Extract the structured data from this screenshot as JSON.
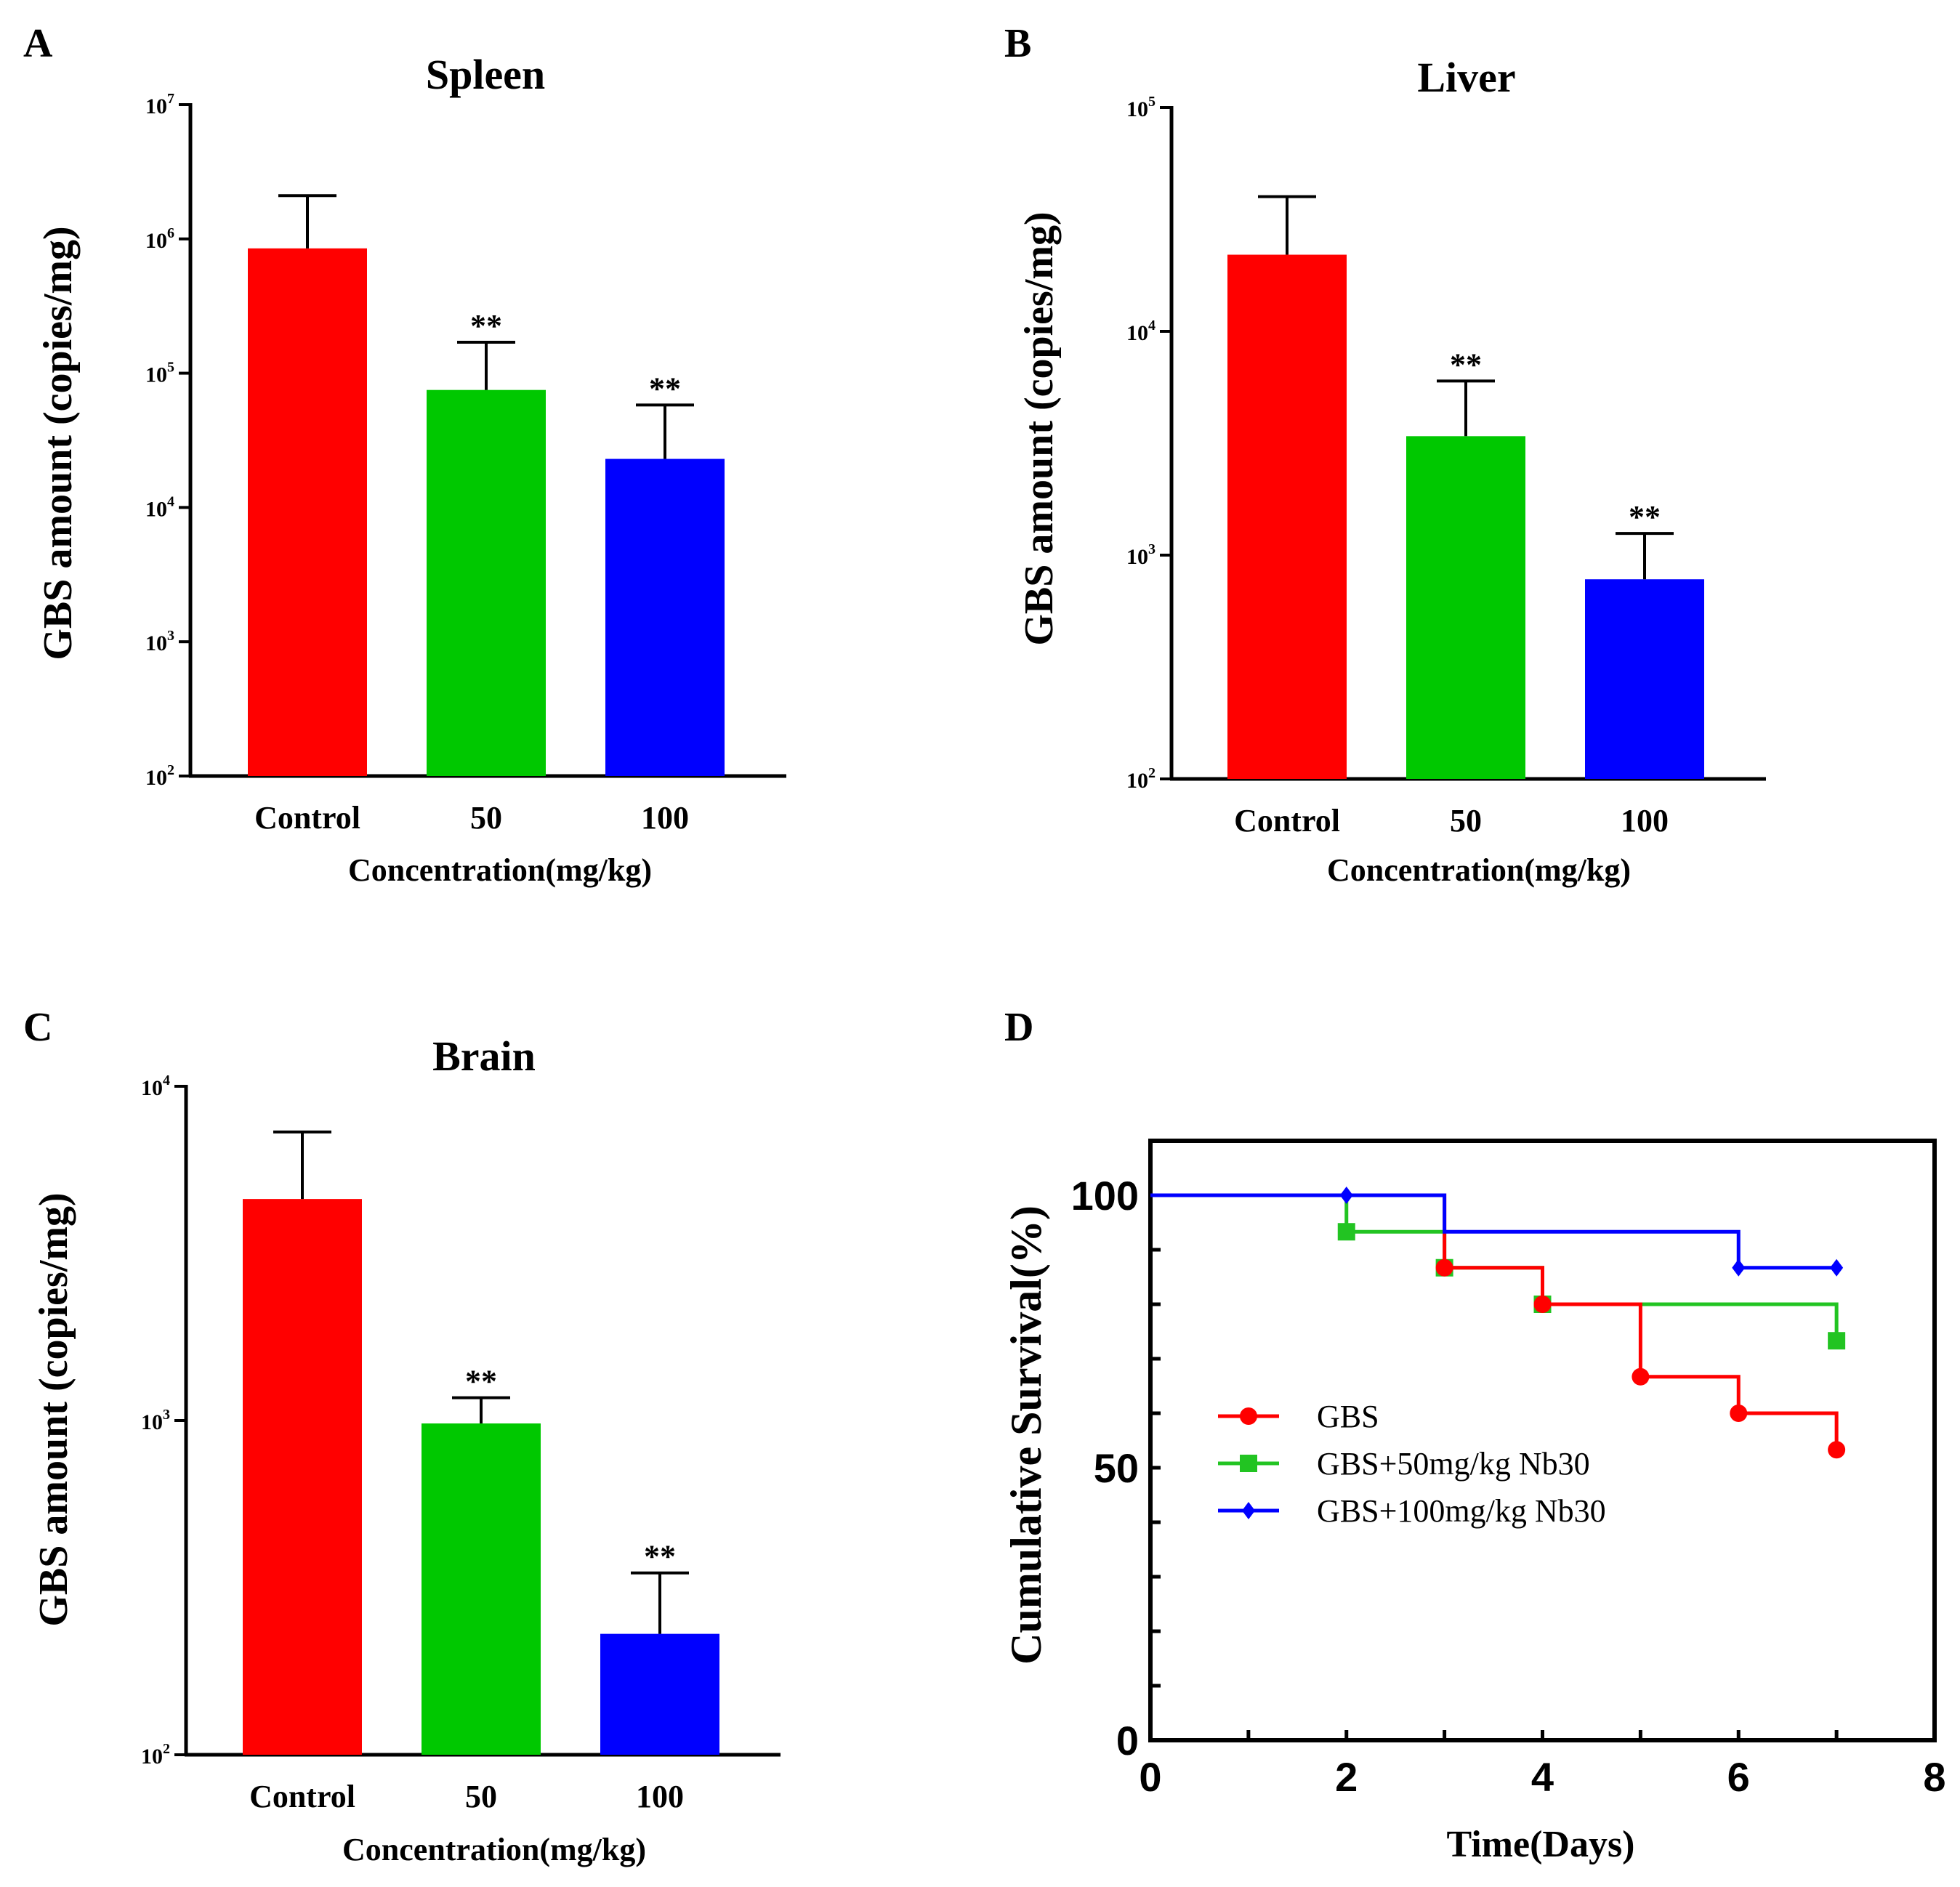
{
  "chart_data": [
    {
      "panel": "A",
      "type": "bar",
      "title": "Spleen",
      "xlabel": "Concentration(mg/kg)",
      "ylabel": "GBS amount (copies/mg)",
      "yscale": "log",
      "ylim": [
        100,
        10000000
      ],
      "y_ticks": [
        {
          "base": "10",
          "exp": "2",
          "value": 100
        },
        {
          "base": "10",
          "exp": "3",
          "value": 1000
        },
        {
          "base": "10",
          "exp": "4",
          "value": 10000
        },
        {
          "base": "10",
          "exp": "5",
          "value": 100000
        },
        {
          "base": "10",
          "exp": "6",
          "value": 1000000
        },
        {
          "base": "10",
          "exp": "7",
          "value": 10000000
        }
      ],
      "categories": [
        "Control",
        "50",
        "100"
      ],
      "values": [
        850000,
        75000,
        23000
      ],
      "error_upper": [
        2100000,
        170000,
        58000
      ],
      "significance": [
        "",
        "**",
        "**"
      ],
      "colors": [
        "#ff0000",
        "#00c800",
        "#0000ff"
      ]
    },
    {
      "panel": "B",
      "type": "bar",
      "title": "Liver",
      "xlabel": "Concentration(mg/kg)",
      "ylabel": "GBS amount  (copies/mg)",
      "yscale": "log",
      "ylim": [
        100,
        100000
      ],
      "y_ticks": [
        {
          "base": "10",
          "exp": "2",
          "value": 100
        },
        {
          "base": "10",
          "exp": "3",
          "value": 1000
        },
        {
          "base": "10",
          "exp": "4",
          "value": 10000
        },
        {
          "base": "10",
          "exp": "5",
          "value": 100000
        }
      ],
      "categories": [
        "Control",
        "50",
        "100"
      ],
      "values": [
        22000,
        3400,
        780
      ],
      "error_upper": [
        40000,
        6000,
        1250
      ],
      "significance": [
        "",
        "**",
        "**"
      ],
      "colors": [
        "#ff0000",
        "#00c800",
        "#0000ff"
      ]
    },
    {
      "panel": "C",
      "type": "bar",
      "title": "Brain",
      "xlabel": "Concentration(mg/kg)",
      "ylabel": "GBS amount (copies/mg)",
      "yscale": "log",
      "ylim": [
        100,
        10000
      ],
      "y_ticks": [
        {
          "base": "10",
          "exp": "2",
          "value": 100
        },
        {
          "base": "10",
          "exp": "3",
          "value": 1000
        },
        {
          "base": "10",
          "exp": "4",
          "value": 10000
        }
      ],
      "categories": [
        "Control",
        "50",
        "100"
      ],
      "values": [
        4600,
        980,
        230
      ],
      "error_upper": [
        7300,
        1170,
        350
      ],
      "significance": [
        "",
        "**",
        "**"
      ],
      "colors": [
        "#ff0000",
        "#00c800",
        "#0000ff"
      ]
    },
    {
      "panel": "D",
      "type": "line",
      "subtype": "step",
      "title": "",
      "xlabel": "Time(Days)",
      "ylabel": "Cumulative Survival(%)",
      "xlim": [
        0,
        8
      ],
      "ylim": [
        0,
        110
      ],
      "x_ticks": [
        0,
        2,
        4,
        6,
        8
      ],
      "y_ticks": [
        0,
        50,
        100
      ],
      "legend_position": "center-left",
      "series": [
        {
          "name": "GBS",
          "color": "#ff0000",
          "marker": "circle",
          "x": [
            0,
            3,
            4,
            5,
            6,
            7
          ],
          "y": [
            100,
            86.7,
            80,
            66.7,
            60,
            53.3
          ],
          "marker_x": [
            3,
            4,
            5,
            6,
            7
          ]
        },
        {
          "name": "GBS+50mg/kg Nb30",
          "color": "#22c422",
          "marker": "square",
          "x": [
            0,
            2,
            3,
            4,
            7
          ],
          "y": [
            100,
            93.3,
            86.7,
            80,
            73.3
          ],
          "marker_x": [
            2,
            3,
            4,
            7
          ]
        },
        {
          "name": "GBS+100mg/kg Nb30",
          "color": "#0000ff",
          "marker": "diamond",
          "x": [
            0,
            2,
            3,
            6,
            7
          ],
          "y": [
            100,
            100,
            93.3,
            86.7,
            86.7
          ],
          "marker_x": [
            2,
            6,
            7
          ]
        }
      ]
    }
  ]
}
